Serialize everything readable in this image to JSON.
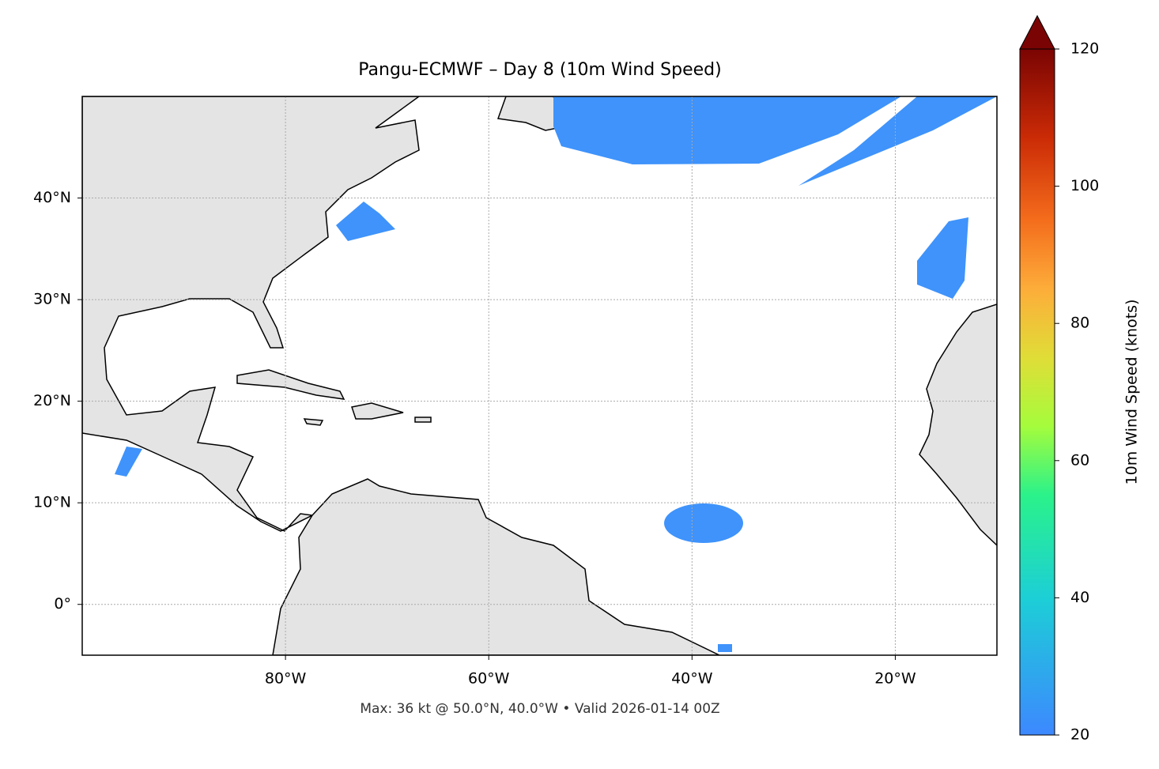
{
  "chart_data": {
    "type": "map",
    "title": "Pangu-ECMWF – Day 8 (10m Wind Speed)",
    "xlim": [
      -100,
      -10
    ],
    "ylim": [
      -5,
      50
    ],
    "xticks": [
      {
        "value": -80,
        "label": "80°W"
      },
      {
        "value": -60,
        "label": "60°W"
      },
      {
        "value": -40,
        "label": "40°W"
      },
      {
        "value": -20,
        "label": "20°W"
      }
    ],
    "yticks": [
      {
        "value": 0,
        "label": "0°"
      },
      {
        "value": 10,
        "label": "10°N"
      },
      {
        "value": 20,
        "label": "20°N"
      },
      {
        "value": 30,
        "label": "30°N"
      },
      {
        "value": 40,
        "label": "40°N"
      }
    ],
    "grid": true,
    "colorbar": {
      "label": "10m Wind Speed (knots)",
      "lim": [
        20,
        120
      ],
      "ticks": [
        20,
        40,
        60,
        80,
        100,
        120
      ],
      "extend": "max"
    },
    "annotation": "Max: 36 kt @ 50.0°N, 40.0°W • Valid 2026-01-14 00Z"
  }
}
